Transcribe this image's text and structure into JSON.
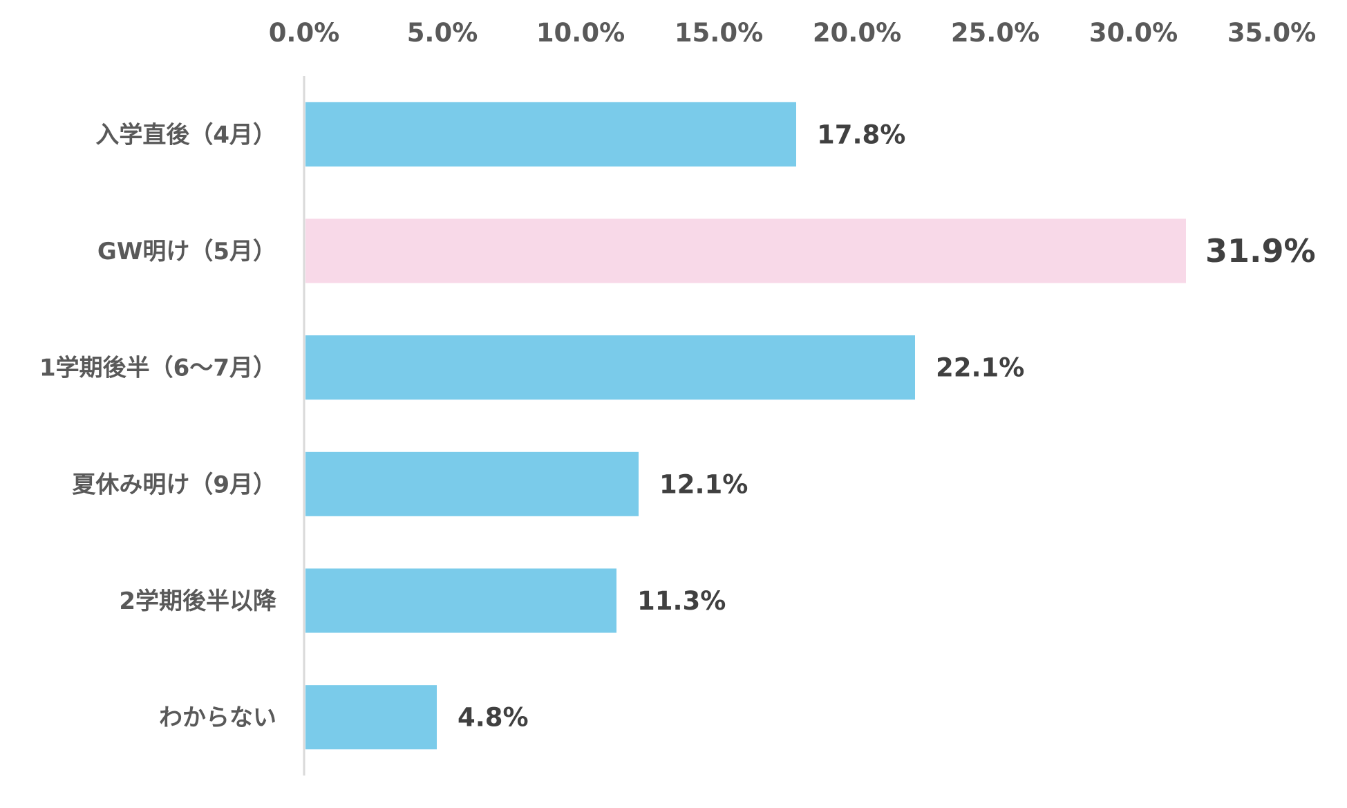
{
  "chart_data": {
    "type": "bar",
    "orientation": "horizontal",
    "title": "",
    "xlabel": "",
    "ylabel": "",
    "xlim": [
      0,
      35
    ],
    "x_ticks": [
      "0.0%",
      "5.0%",
      "10.0%",
      "15.0%",
      "20.0%",
      "25.0%",
      "30.0%",
      "35.0%"
    ],
    "x_tick_values": [
      0,
      5,
      10,
      15,
      20,
      25,
      30,
      35
    ],
    "axis_position": "top",
    "grid": false,
    "categories": [
      "入学直後（4月）",
      "GW明け（5月）",
      "1学期後半（6～7月）",
      "夏休み明け（9月）",
      "2学期後半以降",
      "わからない"
    ],
    "values": [
      17.8,
      31.9,
      22.1,
      12.1,
      11.3,
      4.8
    ],
    "value_labels": [
      "17.8%",
      "31.9%",
      "22.1%",
      "12.1%",
      "11.3%",
      "4.8%"
    ],
    "highlight_index": 1,
    "colors": {
      "bar": "#7ACBEA",
      "bar_highlight": "#F8D9E8",
      "label_highlight": "#C00000",
      "axis": "#D9D9D9"
    }
  }
}
